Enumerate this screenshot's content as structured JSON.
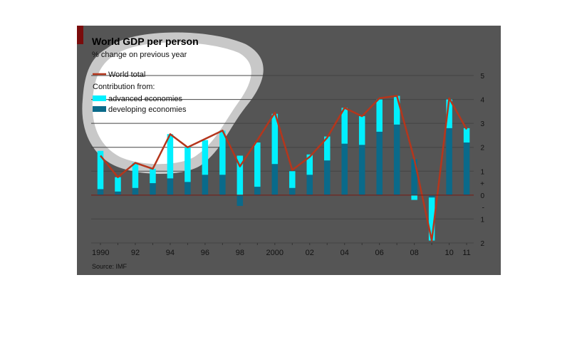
{
  "chart_data": {
    "type": "bar",
    "title": "World GDP per person",
    "subtitle": "% change on previous year",
    "legend": {
      "line_label": "World total",
      "contribution_label": "Contribution from:",
      "items": [
        "advanced economies",
        "developing economies"
      ]
    },
    "source": "Source: IMF",
    "x": [
      1990,
      1991,
      1992,
      1993,
      1994,
      1995,
      1996,
      1997,
      1998,
      1999,
      2000,
      2001,
      2002,
      2003,
      2004,
      2005,
      2006,
      2007,
      2008,
      2009,
      2010,
      2011
    ],
    "x_tick_labels": [
      {
        "year": 1990,
        "label": "1990"
      },
      {
        "year": 1992,
        "label": "92"
      },
      {
        "year": 1994,
        "label": "94"
      },
      {
        "year": 1996,
        "label": "96"
      },
      {
        "year": 1998,
        "label": "98"
      },
      {
        "year": 2000,
        "label": "2000"
      },
      {
        "year": 2002,
        "label": "02"
      },
      {
        "year": 2004,
        "label": "04"
      },
      {
        "year": 2006,
        "label": "06"
      },
      {
        "year": 2008,
        "label": "08"
      },
      {
        "year": 2010,
        "label": "10"
      },
      {
        "year": 2011,
        "label": "11"
      }
    ],
    "y_ticks": [
      {
        "value": 5,
        "label": "5"
      },
      {
        "value": 4,
        "label": "4"
      },
      {
        "value": 3,
        "label": "3"
      },
      {
        "value": 2,
        "label": "2"
      },
      {
        "value": 1,
        "label": "1"
      },
      {
        "value": 0,
        "label": "0"
      },
      {
        "value": -1,
        "label": "1"
      },
      {
        "value": -2,
        "label": "2"
      }
    ],
    "y_sign_labels": [
      "+",
      "-"
    ],
    "ylim": [
      -2,
      5
    ],
    "series": [
      {
        "name": "World total",
        "type": "line",
        "color": "#b5361c",
        "values": [
          1.65,
          0.75,
          1.35,
          1.1,
          2.55,
          2.0,
          2.35,
          2.7,
          1.2,
          2.3,
          3.45,
          1.05,
          1.6,
          2.4,
          3.65,
          3.3,
          4.05,
          4.15,
          1.5,
          -1.9,
          4.05,
          2.75
        ]
      },
      {
        "name": "advanced economies",
        "type": "bar",
        "color": "#00f0ff",
        "values": [
          1.6,
          0.6,
          1.05,
          0.6,
          1.85,
          1.45,
          1.45,
          1.85,
          1.65,
          1.85,
          2.1,
          0.7,
          0.85,
          1.0,
          1.5,
          1.2,
          1.35,
          1.2,
          -0.2,
          -1.8,
          1.2,
          0.6
        ]
      },
      {
        "name": "developing economies",
        "type": "bar",
        "color": "#0a6a8a",
        "values": [
          0.25,
          0.15,
          0.3,
          0.5,
          0.7,
          0.55,
          0.85,
          0.85,
          -0.45,
          0.35,
          1.3,
          0.3,
          0.85,
          1.45,
          2.15,
          2.1,
          2.65,
          2.95,
          1.5,
          -0.1,
          2.8,
          2.2
        ]
      }
    ],
    "grid": true,
    "legend_position": "top-left",
    "colors": {
      "overlay": "#555555",
      "accent": "#7a0c0c",
      "highlight": "#c8c8c8"
    }
  }
}
